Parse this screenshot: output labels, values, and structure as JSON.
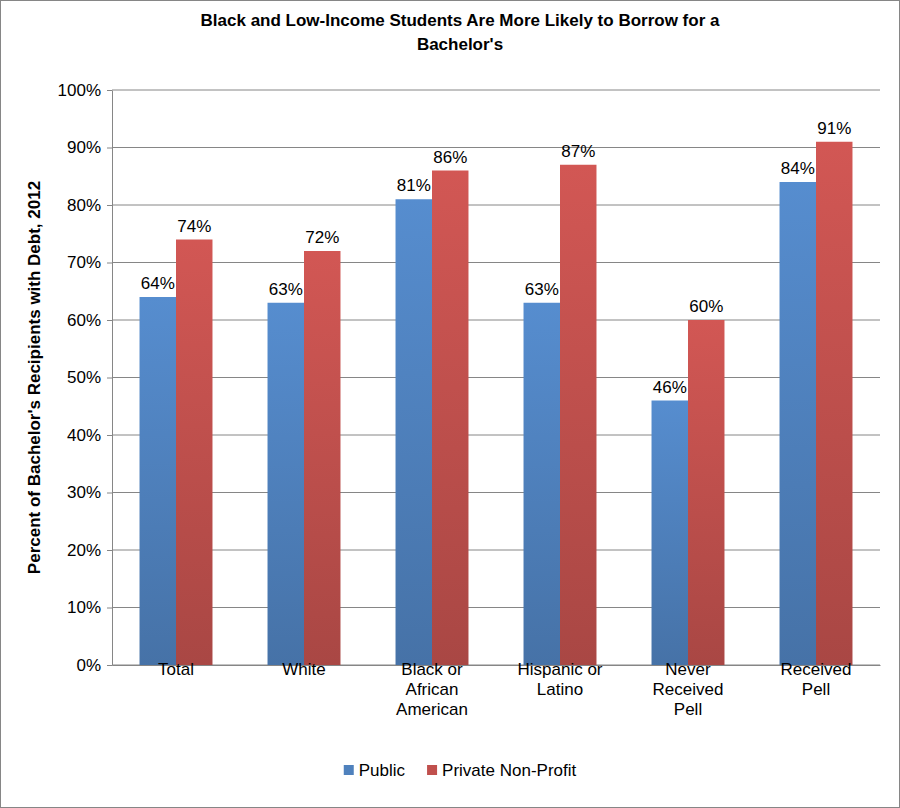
{
  "chart_data": {
    "type": "bar",
    "title": "Black and Low-Income Students Are More Likely to Borrow for a Bachelor's",
    "y_label": "Percent of Bachelor's Recipients with Debt, 2012",
    "categories": [
      "Total",
      "White",
      "Black or African American",
      "Hispanic or Latino",
      "Never Received Pell",
      "Received Pell"
    ],
    "series": [
      {
        "name": "Public",
        "color": "#4f81bd",
        "values": [
          64,
          63,
          81,
          63,
          46,
          84
        ],
        "value_labels": [
          "64%",
          "63%",
          "81%",
          "63%",
          "46%",
          "84%"
        ]
      },
      {
        "name": "Private Non-Profit",
        "color": "#c0504d",
        "values": [
          74,
          72,
          86,
          87,
          60,
          91
        ],
        "value_labels": [
          "74%",
          "72%",
          "86%",
          "87%",
          "60%",
          "91%"
        ]
      }
    ],
    "ylim": [
      0,
      100
    ],
    "yticks": [
      {
        "value": 0,
        "label": "0%"
      },
      {
        "value": 10,
        "label": "10%"
      },
      {
        "value": 20,
        "label": "20%"
      },
      {
        "value": 30,
        "label": "30%"
      },
      {
        "value": 40,
        "label": "40%"
      },
      {
        "value": 50,
        "label": "50%"
      },
      {
        "value": 60,
        "label": "60%"
      },
      {
        "value": 70,
        "label": "70%"
      },
      {
        "value": 80,
        "label": "80%"
      },
      {
        "value": 90,
        "label": "90%"
      },
      {
        "value": 100,
        "label": "100%"
      }
    ],
    "grid": true,
    "legend": "bottom",
    "data_labels": true
  }
}
